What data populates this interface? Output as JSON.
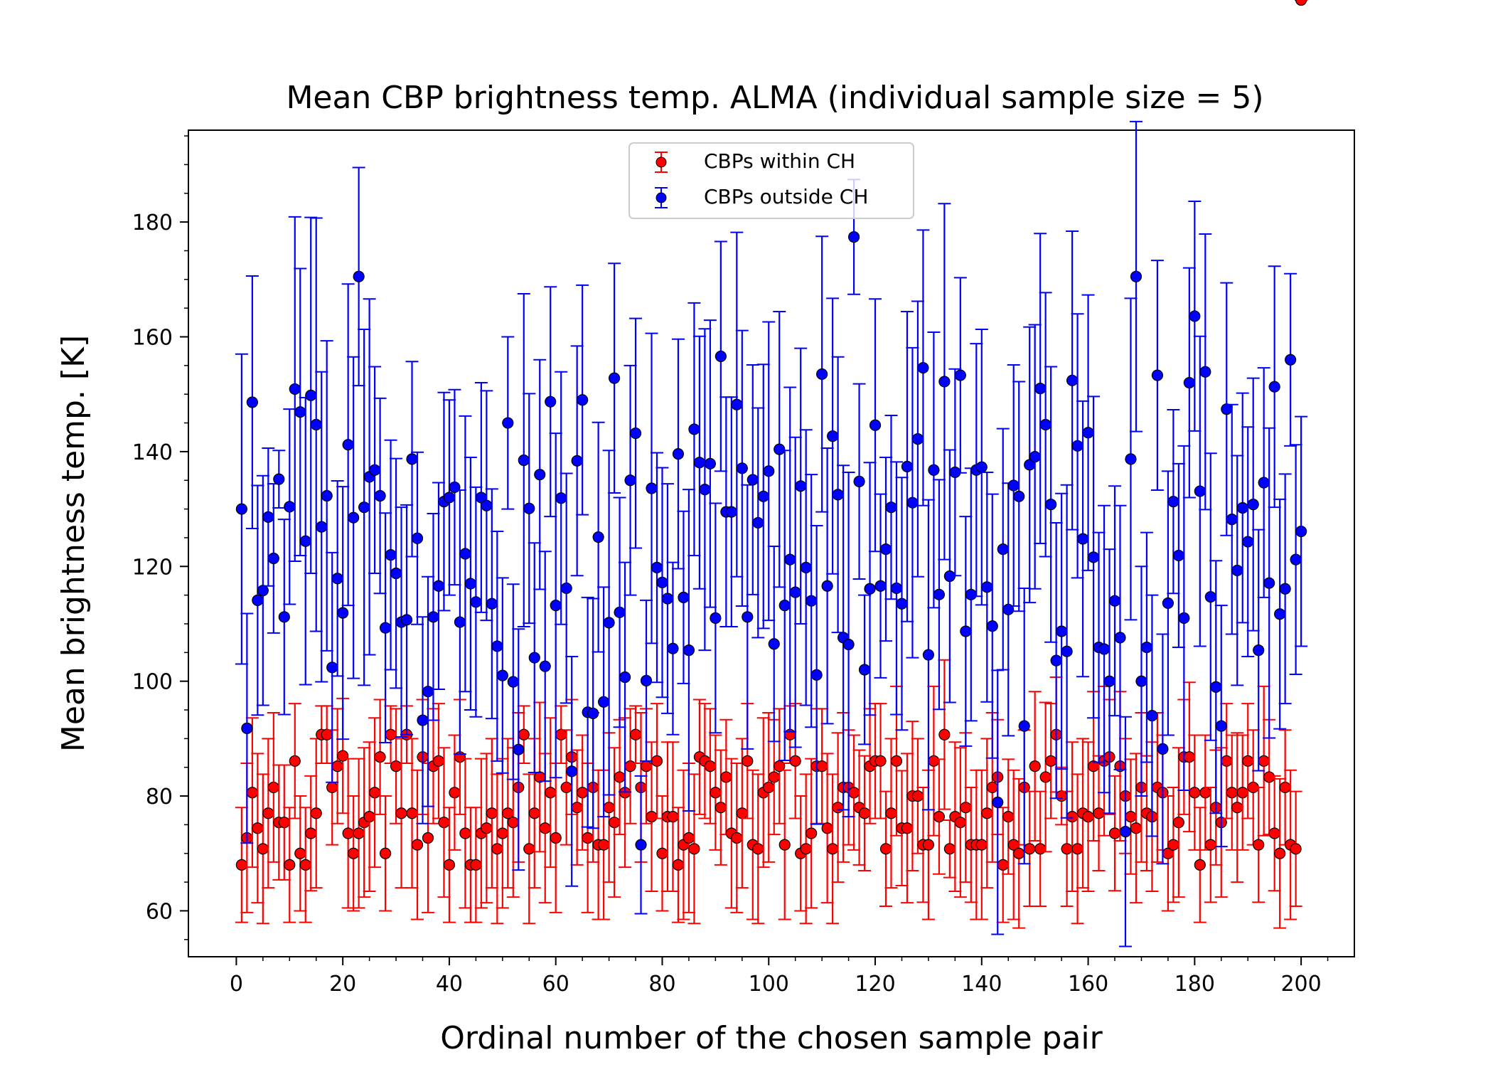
{
  "chart_data": {
    "type": "scatter",
    "title": "Mean CBP brightness temp. ALMA (individual sample size = 5)",
    "xlabel": "Ordinal number of the chosen sample pair",
    "ylabel": "Mean brightness temp. [K]",
    "xlim": [
      -9,
      210
    ],
    "ylim": [
      52,
      196
    ],
    "xticks": [
      0,
      20,
      40,
      60,
      80,
      100,
      120,
      140,
      160,
      180,
      200
    ],
    "yticks": [
      60,
      80,
      100,
      120,
      140,
      160,
      180
    ],
    "legend": {
      "position": "upper center"
    },
    "grid": false,
    "x": [
      1,
      2,
      3,
      4,
      5,
      6,
      7,
      8,
      9,
      10,
      11,
      12,
      13,
      14,
      15,
      16,
      17,
      18,
      19,
      20,
      21,
      22,
      23,
      24,
      25,
      26,
      27,
      28,
      29,
      30,
      31,
      32,
      33,
      34,
      35,
      36,
      37,
      38,
      39,
      40,
      41,
      42,
      43,
      44,
      45,
      46,
      47,
      48,
      49,
      50,
      51,
      52,
      53,
      54,
      55,
      56,
      57,
      58,
      59,
      60,
      61,
      62,
      63,
      64,
      65,
      66,
      67,
      68,
      69,
      70,
      71,
      72,
      73,
      74,
      75,
      76,
      77,
      78,
      79,
      80,
      81,
      82,
      83,
      84,
      85,
      86,
      87,
      88,
      89,
      90,
      91,
      92,
      93,
      94,
      95,
      96,
      97,
      98,
      99,
      100,
      101,
      102,
      103,
      104,
      105,
      106,
      107,
      108,
      109,
      110,
      111,
      112,
      113,
      114,
      115,
      116,
      117,
      118,
      119,
      120,
      121,
      122,
      123,
      124,
      125,
      126,
      127,
      128,
      129,
      130,
      131,
      132,
      133,
      134,
      135,
      136,
      137,
      138,
      139,
      140,
      141,
      142,
      143,
      144,
      145,
      146,
      147,
      148,
      149,
      150,
      151,
      152,
      153,
      154,
      155,
      156,
      157,
      158,
      159,
      160,
      161,
      162,
      163,
      164,
      165,
      166,
      167,
      168,
      169,
      170,
      171,
      172,
      173,
      174,
      175,
      176,
      177,
      178,
      179,
      180,
      181,
      182,
      183,
      184,
      185,
      186,
      187,
      188,
      189,
      190,
      191,
      192,
      193,
      194,
      195,
      196,
      197,
      198,
      199,
      200
    ],
    "series": [
      {
        "name": "CBPs within CH",
        "color": "#ff0000",
        "y": [
          68,
          72.7,
          80.6,
          74.4,
          70.8,
          77,
          81.5,
          75.4,
          75.4,
          68,
          86.1,
          70,
          68,
          73.5,
          77,
          90.7,
          90.7,
          81.5,
          85.2,
          87,
          73.5,
          70,
          73.5,
          75.4,
          76.4,
          80.6,
          86.8,
          70,
          90.7,
          85.2,
          77,
          90.7,
          77,
          71.5,
          86.8,
          72.7,
          85.2,
          86.1,
          75.4,
          68,
          80.6,
          86.8,
          73.5,
          68,
          68,
          73.5,
          74.4,
          77,
          70.8,
          73.5,
          77,
          75.4,
          81.5,
          90.7,
          70.8,
          77,
          83.3,
          74.4,
          80.6,
          72.7,
          90.7,
          81.5,
          86.8,
          78,
          80.6,
          72.7,
          81.5,
          71.5,
          71.5,
          78,
          75.4,
          83.3,
          80.6,
          85.2,
          90.7,
          81.5,
          85.2,
          76.4,
          86.1,
          70,
          76.4,
          76.4,
          68,
          71.5,
          72.7,
          70.8,
          86.8,
          86.1,
          85.2,
          80.6,
          78,
          83.3,
          73.5,
          72.7,
          77,
          86.1,
          71.5,
          70.8,
          80.6,
          81.5,
          83.3,
          85.2,
          71.5,
          90.7,
          86.1,
          70,
          70.8,
          73.5,
          85.2,
          85.2,
          74.4,
          70.8,
          78,
          81.5,
          81.5,
          80.6,
          78,
          77,
          85.2,
          86.1,
          86.1,
          70.8,
          77,
          86.1,
          74.4,
          74.4,
          80,
          80,
          71.5,
          71.5,
          86.1,
          76.4,
          90.7,
          70.8,
          76.4,
          75.4,
          78,
          71.5,
          71.5,
          71.5,
          77,
          81.5,
          83.3,
          68,
          76.4,
          71.5,
          70,
          81.5,
          70.8,
          85.2,
          70.8,
          83.3,
          86.1,
          90.7,
          80,
          70.8,
          76.4,
          70.8,
          77,
          76.4,
          85.2,
          77,
          86.1,
          86.8,
          73.5,
          85.2,
          80,
          76.4,
          74.4,
          81.5,
          77,
          76.4,
          81.5,
          80.6,
          70,
          71.5,
          75.4,
          86.8,
          86.8,
          80.6,
          68,
          80.6,
          71.5,
          78,
          75.4,
          86.1,
          80.6,
          78,
          80.6,
          86.1,
          81.5,
          71.5,
          86.1,
          83.3,
          73.5,
          70,
          81.5,
          71.5,
          70.8
        ],
        "err": [
          10,
          13,
          13,
          13,
          13,
          13,
          13,
          10,
          10,
          10,
          10,
          10,
          10,
          10,
          13,
          5,
          5,
          10,
          10,
          10,
          13,
          10,
          13,
          13,
          13,
          13,
          10,
          10,
          5,
          10,
          13,
          5,
          13,
          13,
          10,
          13,
          10,
          10,
          13,
          10,
          10,
          10,
          13,
          10,
          10,
          13,
          13,
          13,
          13,
          13,
          13,
          13,
          13,
          5,
          13,
          13,
          13,
          13,
          13,
          13,
          5,
          10,
          10,
          10,
          10,
          13,
          13,
          13,
          13,
          13,
          13,
          10,
          13,
          10,
          5,
          13,
          10,
          13,
          10,
          10,
          13,
          13,
          10,
          13,
          13,
          13,
          10,
          10,
          10,
          10,
          10,
          10,
          13,
          13,
          13,
          10,
          13,
          13,
          13,
          13,
          10,
          10,
          13,
          5,
          10,
          10,
          13,
          13,
          10,
          10,
          13,
          13,
          13,
          13,
          10,
          10,
          10,
          10,
          10,
          10,
          10,
          10,
          13,
          13,
          10,
          13,
          13,
          10,
          10,
          13,
          13,
          10,
          13,
          5,
          13,
          13,
          13,
          10,
          13,
          13,
          13,
          13,
          10,
          10,
          10,
          13,
          13,
          10,
          10,
          13,
          10,
          13,
          10,
          10,
          5,
          10,
          13,
          13,
          13,
          13,
          13,
          10,
          13,
          10,
          10,
          13,
          10,
          10,
          13,
          13,
          10,
          13,
          13,
          10,
          10,
          10,
          13,
          10,
          13,
          10,
          10,
          10,
          10,
          10,
          13,
          10,
          10,
          13,
          10,
          10,
          10,
          10,
          13,
          10,
          10,
          13,
          10,
          13,
          10,
          13
        ]
      },
      {
        "name": "CBPs outside CH",
        "color": "#0000ff",
        "y": [
          130,
          91.8,
          148.6,
          114.1,
          115.8,
          128.6,
          121.4,
          135.2,
          111.2,
          130.4,
          150.9,
          146.9,
          124.4,
          149.8,
          144.7,
          126.9,
          132.3,
          102.4,
          117.9,
          111.9,
          141.2,
          128.5,
          170.5,
          130.3,
          135.6,
          136.8,
          132.3,
          109.3,
          122,
          118.8,
          110.3,
          110.7,
          138.7,
          124.9,
          93.2,
          98.2,
          111.2,
          116.6,
          131.3,
          132,
          133.8,
          110.3,
          122.2,
          117,
          113.8,
          132,
          130.6,
          113.5,
          106.1,
          101,
          145,
          99.9,
          88.1,
          138.5,
          130.1,
          104.1,
          136,
          102.6,
          148.7,
          113.2,
          131.9,
          116.2,
          84.3,
          138.4,
          149,
          94.6,
          94.4,
          125.1,
          96.4,
          110.2,
          152.8,
          112,
          100.7,
          135,
          143.2,
          71.5,
          100.1,
          133.6,
          119.8,
          117.2,
          114.4,
          105.7,
          139.6,
          114.6,
          105.4,
          143.9,
          138.1,
          133.4,
          137.9,
          111,
          156.6,
          129.5,
          129.5,
          148.2,
          137.1,
          111.2,
          135.1,
          127.6,
          132.2,
          136.6,
          106.5,
          140.4,
          113.2,
          121.2,
          115.5,
          134,
          119.8,
          114,
          101.1,
          153.5,
          116.6,
          142.7,
          132.5,
          107.6,
          106.4,
          177.4,
          134.8,
          102,
          116.1,
          144.6,
          116.6,
          123,
          130.3,
          116.2,
          113.5,
          137.4,
          131.1,
          142.2,
          154.6,
          104.6,
          136.8,
          115.1,
          152.2,
          118.3,
          136.4,
          153.3,
          108.7,
          115.1,
          136.8,
          137.3,
          116.4,
          109.6,
          78.9,
          123,
          112.5,
          134.1,
          132.2,
          92.2,
          137.7,
          139.1,
          151,
          144.7,
          130.8,
          103.6,
          108.7,
          105.2,
          152.4,
          141,
          124.8,
          143.3,
          121.6,
          105.9,
          105.6,
          100,
          114,
          107.6,
          73.8,
          138.7,
          170.5,
          100,
          105.9,
          94,
          153.3,
          88.2,
          113.6,
          131.3,
          121.9,
          111,
          152,
          163.6,
          133.1,
          153.9,
          114.7,
          99,
          92.2,
          147.4,
          128.2,
          119.3,
          130.2,
          124.3,
          130.8,
          105.4,
          134.6,
          117.1,
          151.3,
          111.7,
          116.1,
          156,
          121.2,
          126.1
        ],
        "err": [
          27,
          20,
          22,
          20,
          20,
          12,
          13,
          5,
          17,
          17,
          30,
          25,
          25,
          31,
          36,
          27,
          27,
          20,
          17,
          22,
          28,
          28,
          19,
          31,
          31,
          18,
          17,
          20,
          20,
          20,
          20,
          20,
          17,
          15,
          18,
          20,
          18,
          18,
          19,
          17,
          17,
          23,
          24,
          22,
          20,
          20,
          20,
          20,
          20,
          17,
          15,
          17,
          21,
          29,
          20,
          20,
          20,
          20,
          20,
          30,
          22,
          20,
          20,
          20,
          20,
          20,
          20,
          20,
          20,
          30,
          20,
          20,
          20,
          20,
          20,
          12,
          14,
          27,
          20,
          20,
          20,
          15,
          20,
          15,
          28,
          22,
          22,
          28,
          25,
          20,
          20,
          20,
          20,
          30,
          24,
          23,
          20,
          20,
          23,
          26,
          17,
          24,
          27,
          30,
          27,
          24,
          24,
          22,
          26,
          24,
          24,
          24,
          24,
          30,
          30,
          10,
          17,
          13,
          22,
          22,
          16,
          16,
          16,
          22,
          22,
          27,
          27,
          24,
          24,
          27,
          24,
          20,
          31,
          22,
          18,
          17,
          20,
          22,
          22,
          24,
          20,
          23,
          23,
          21,
          22,
          21,
          20,
          24,
          24,
          23,
          27,
          23,
          24,
          24,
          24,
          29,
          26,
          23,
          24,
          24,
          28,
          20,
          25,
          23,
          20,
          23,
          20,
          28,
          27,
          20,
          20,
          21,
          20,
          20,
          23,
          16,
          16,
          30,
          20,
          20,
          27,
          24,
          25,
          22,
          21,
          22,
          20,
          20,
          20,
          20,
          22,
          21,
          20,
          27,
          21,
          20,
          20,
          15,
          20,
          20
        ]
      }
    ]
  }
}
